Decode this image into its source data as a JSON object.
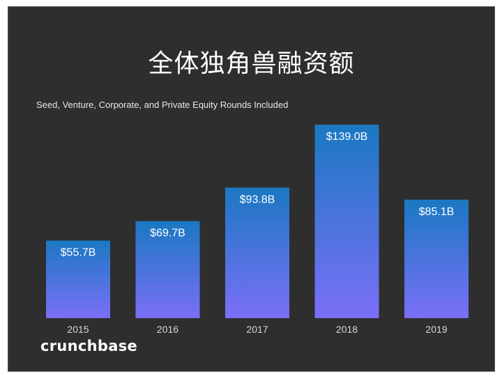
{
  "chart_data": {
    "type": "bar",
    "title": "全体独角兽融资额",
    "subtitle": "Seed, Venture, Corporate, and Private Equity Rounds Included",
    "categories": [
      "2015",
      "2016",
      "2017",
      "2018",
      "2019"
    ],
    "values": [
      55.7,
      69.7,
      93.8,
      139.0,
      85.1
    ],
    "value_labels": [
      "$55.7B",
      "$69.7B",
      "$93.8B",
      "$139.0B",
      "$85.1B"
    ],
    "xlabel": "",
    "ylabel": "",
    "ylim": [
      0,
      139.0
    ],
    "grid": false,
    "legend": "none",
    "colors": {
      "bar_top": "#1a78c2",
      "bar_bottom": "#7b6ff7",
      "background": "#2e2e2e"
    }
  },
  "brand": {
    "name": "crunchbase"
  }
}
